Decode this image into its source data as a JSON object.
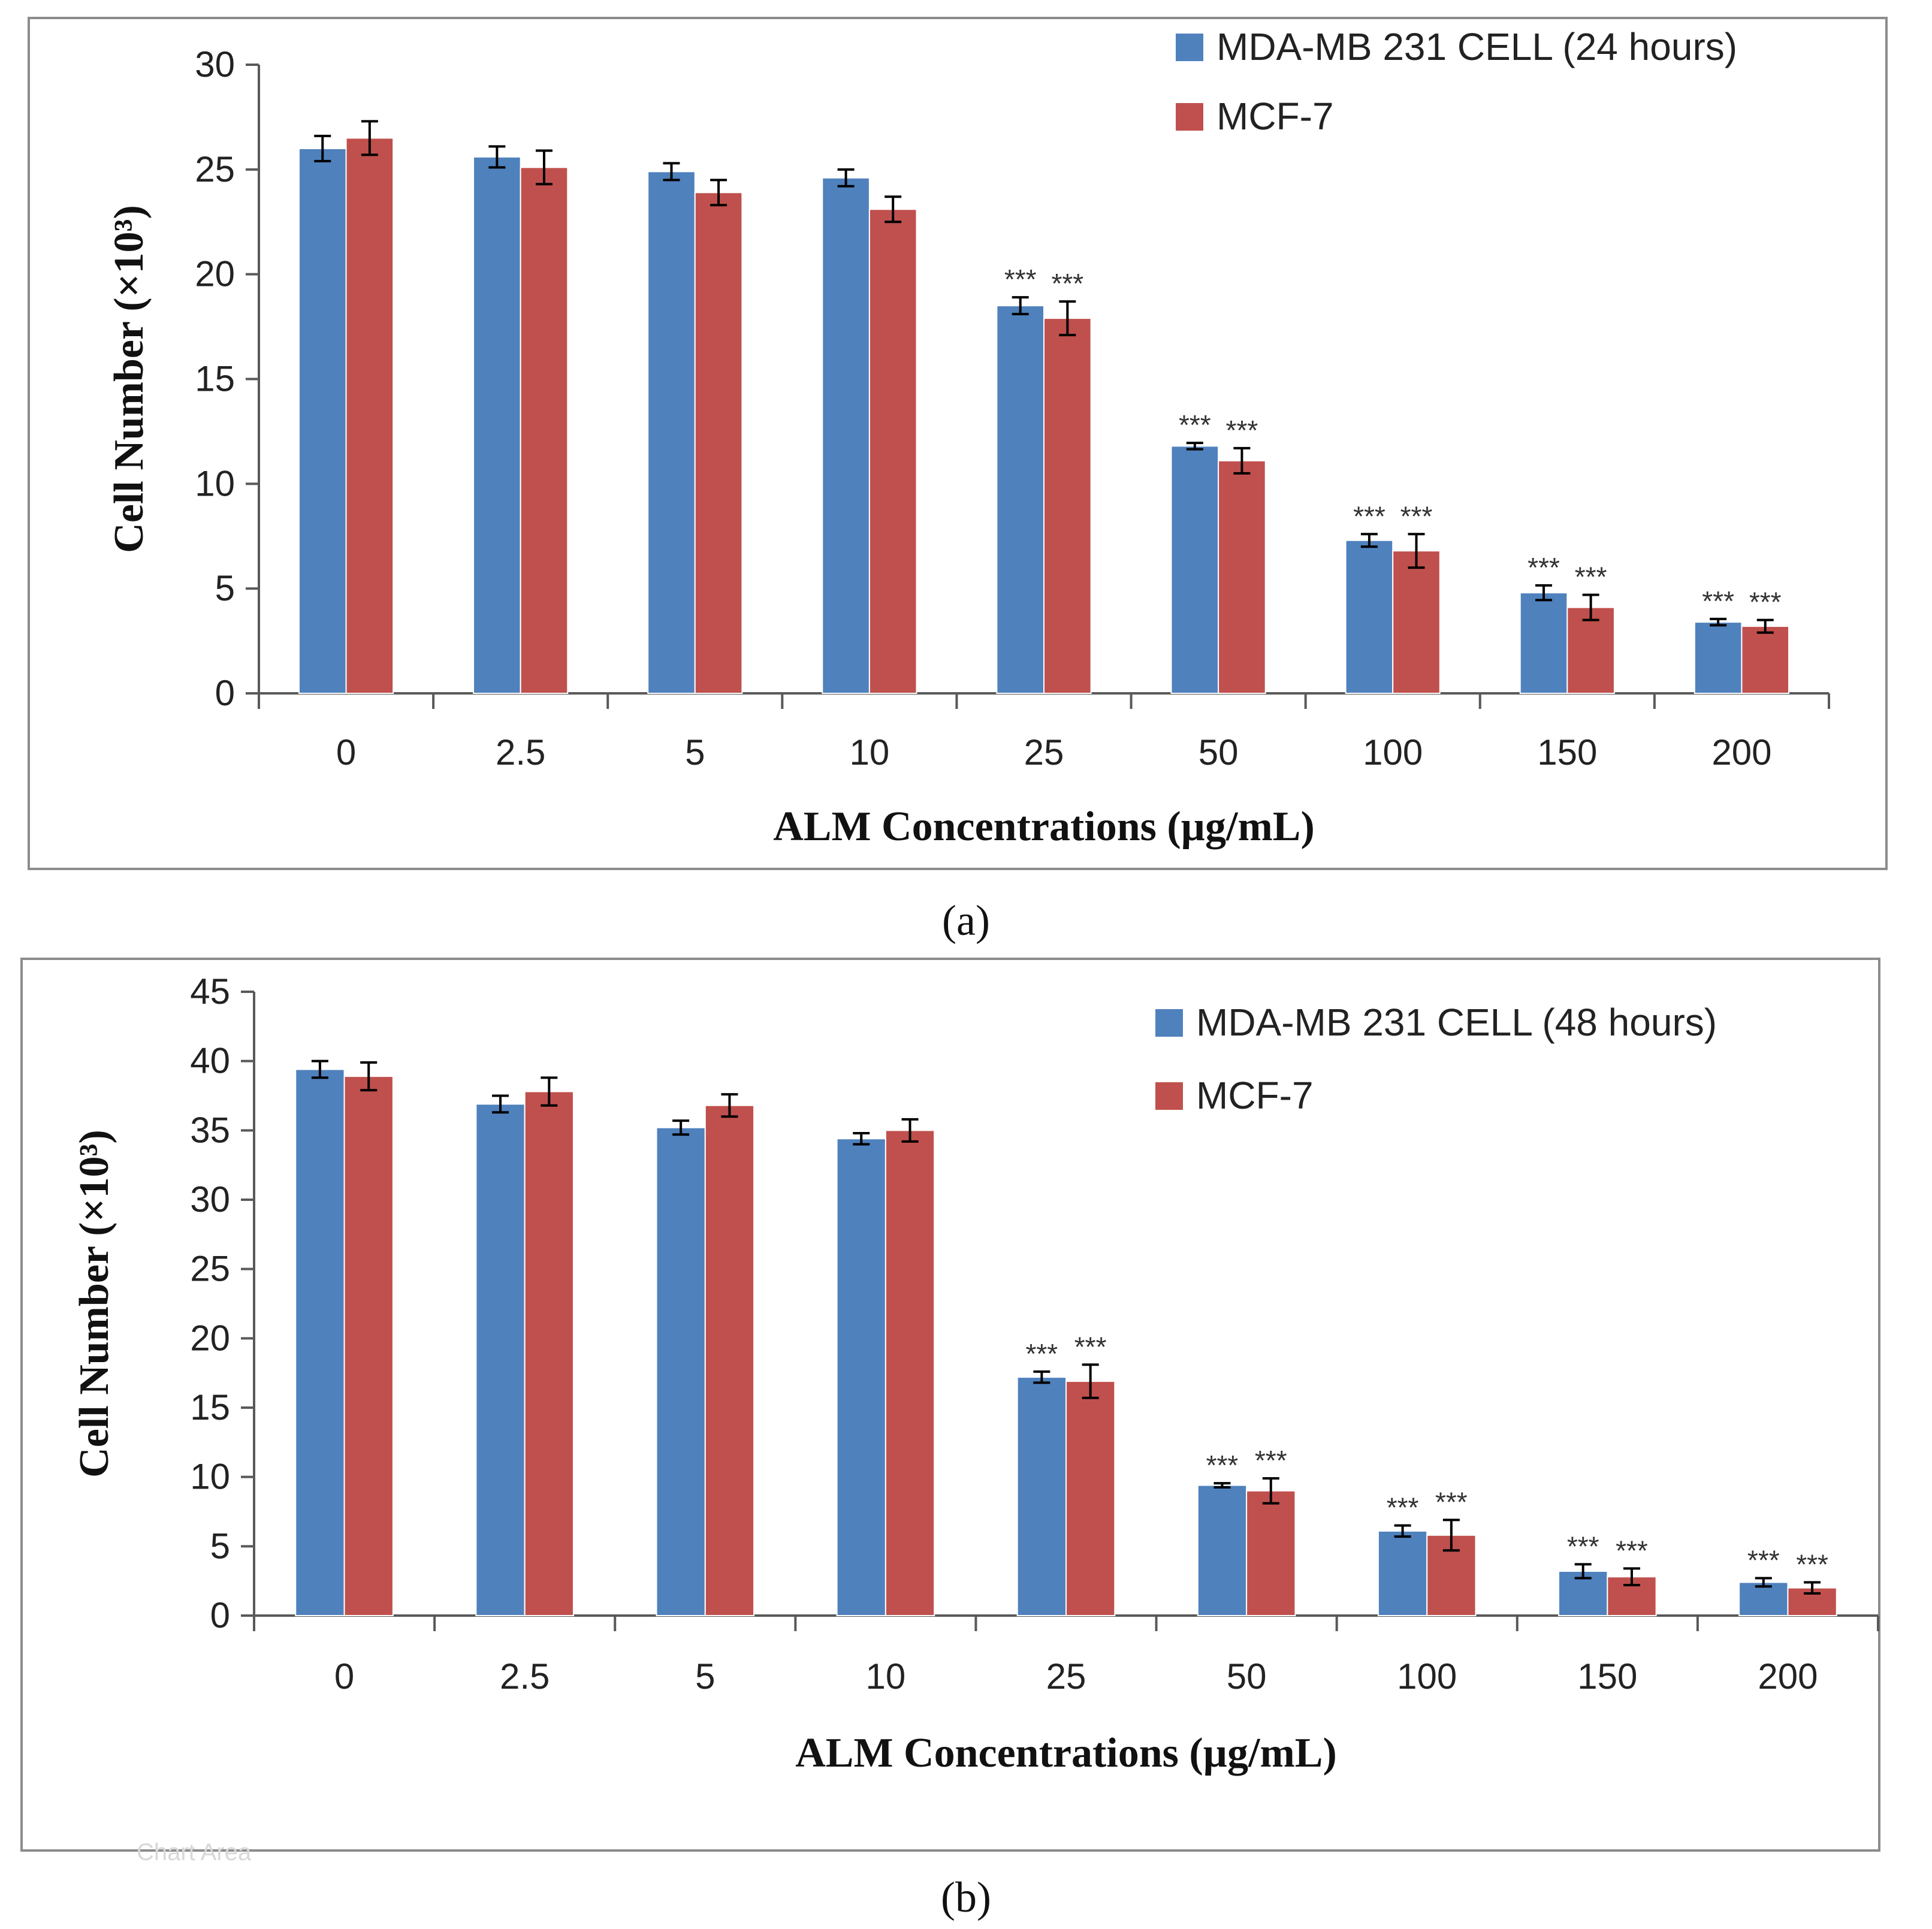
{
  "colors": {
    "series1": "#4f81bd",
    "series2": "#c0504d",
    "frame": "#8c8c8c",
    "axis": "#595959"
  },
  "chart_data": [
    {
      "type": "bar",
      "panel_label": "(a)",
      "xlabel": "ALM Concentrations (µg/mL)",
      "ylabel": "Cell Number (×10³)",
      "ylim": [
        0,
        30
      ],
      "yticks": [
        0,
        5,
        10,
        15,
        20,
        25,
        30
      ],
      "grid": false,
      "legend_position": "top-right",
      "categories": [
        "0",
        "2.5",
        "5",
        "10",
        "25",
        "50",
        "100",
        "150",
        "200"
      ],
      "series": [
        {
          "name": "MDA-MB 231 CELL (24 hours)",
          "color": "#4f81bd",
          "values": [
            26.0,
            25.6,
            24.9,
            24.6,
            18.5,
            11.8,
            7.3,
            4.8,
            3.4
          ],
          "errors": [
            0.6,
            0.5,
            0.4,
            0.4,
            0.4,
            0.15,
            0.3,
            0.35,
            0.15
          ],
          "significance": [
            "",
            "",
            "",
            "",
            "***",
            "***",
            "***",
            "***",
            "***"
          ]
        },
        {
          "name": "MCF-7",
          "color": "#c0504d",
          "values": [
            26.5,
            25.1,
            23.9,
            23.1,
            17.9,
            11.1,
            6.8,
            4.1,
            3.2
          ],
          "errors": [
            0.8,
            0.8,
            0.6,
            0.6,
            0.8,
            0.6,
            0.8,
            0.6,
            0.3
          ],
          "significance": [
            "",
            "",
            "",
            "",
            "***",
            "***",
            "***",
            "***",
            "***"
          ]
        }
      ]
    },
    {
      "type": "bar",
      "panel_label": "(b)",
      "xlabel": "ALM Concentrations (µg/mL)",
      "ylabel": "Cell Number (×10³)",
      "ylim": [
        0,
        45
      ],
      "yticks": [
        0,
        5,
        10,
        15,
        20,
        25,
        30,
        35,
        40,
        45
      ],
      "grid": false,
      "legend_position": "top-right",
      "categories": [
        "0",
        "2.5",
        "5",
        "10",
        "25",
        "50",
        "100",
        "150",
        "200"
      ],
      "series": [
        {
          "name": "MDA-MB 231 CELL (48 hours)",
          "color": "#4f81bd",
          "values": [
            39.4,
            36.9,
            35.2,
            34.4,
            17.2,
            9.4,
            6.1,
            3.2,
            2.4
          ],
          "errors": [
            0.6,
            0.6,
            0.5,
            0.4,
            0.4,
            0.15,
            0.4,
            0.5,
            0.3
          ],
          "significance": [
            "",
            "",
            "",
            "",
            "***",
            "***",
            "***",
            "***",
            "***"
          ]
        },
        {
          "name": "MCF-7",
          "color": "#c0504d",
          "values": [
            38.9,
            37.8,
            36.8,
            35.0,
            16.9,
            9.0,
            5.8,
            2.8,
            2.0
          ],
          "errors": [
            1.0,
            1.0,
            0.8,
            0.8,
            1.2,
            0.9,
            1.1,
            0.6,
            0.4
          ],
          "significance": [
            "",
            "",
            "",
            "",
            "***",
            "***",
            "***",
            "***",
            "***"
          ]
        }
      ]
    }
  ],
  "chart_area_tag": "Chart Area"
}
